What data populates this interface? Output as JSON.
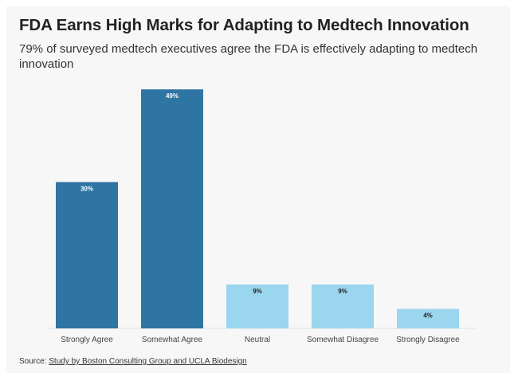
{
  "title": "FDA Earns High Marks for Adapting to Medtech Innovation",
  "subtitle": "79% of surveyed medtech executives agree the FDA is effectively adapting to medtech innovation",
  "source": {
    "prefix": "Source: ",
    "link_text": "Study by Boston Consulting Group and UCLA Biodesign"
  },
  "colors": {
    "agree": "#2e75a3",
    "neutral_disagree": "#9ad6ee",
    "label_on_dark": "#ffffff",
    "label_on_light": "#222222"
  },
  "chart_data": {
    "type": "bar",
    "title": "FDA Earns High Marks for Adapting to Medtech Innovation",
    "xlabel": "",
    "ylabel": "",
    "ylim": [
      0,
      50
    ],
    "grid": false,
    "categories": [
      "Strongly Agree",
      "Somewhat Agree",
      "Neutral",
      "Somewhat Disagree",
      "Strongly Disagree"
    ],
    "values": [
      30,
      49,
      9,
      9,
      4
    ],
    "data_labels": [
      "30%",
      "49%",
      "9%",
      "9%",
      "4%"
    ],
    "bar_colors": [
      "#2e75a3",
      "#2e75a3",
      "#9ad6ee",
      "#9ad6ee",
      "#9ad6ee"
    ]
  }
}
